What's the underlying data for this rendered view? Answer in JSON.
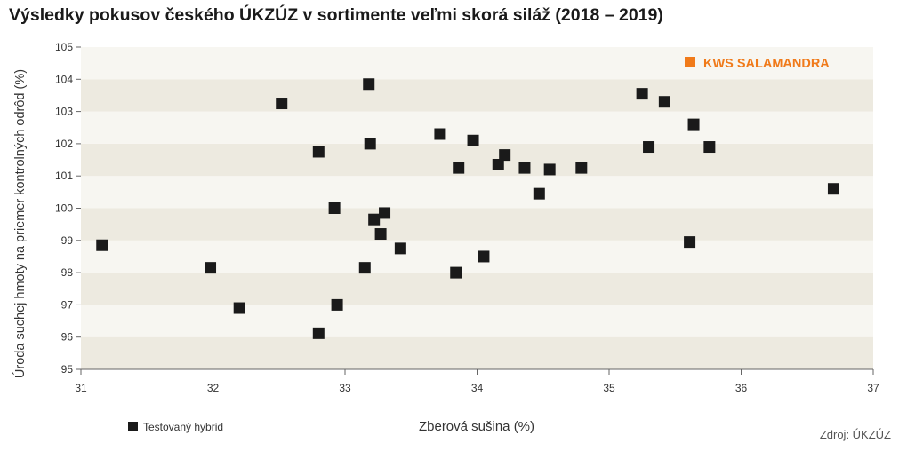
{
  "title": "Výsledky pokusov českého ÚKZÚZ v sortimente veľmi skorá siláž (2018 – 2019)",
  "source": "Zdroj: ÚKZÚZ",
  "colors": {
    "highlight": "#f07a1a",
    "marker": "#1a1a1a",
    "band_dark": "#edeae0",
    "band_light": "#f7f6f1"
  },
  "chart_data": {
    "type": "scatter",
    "xlabel": "Zberová sušina (%)",
    "ylabel": "Úroda suchej hmoty na priemer kontrolných odrôd (%)",
    "xlim": [
      31,
      37
    ],
    "ylim": [
      95,
      105
    ],
    "x_ticks": [
      "31",
      "32",
      "33",
      "34",
      "35",
      "36",
      "37"
    ],
    "y_ticks": [
      "95",
      "96",
      "97",
      "98",
      "99",
      "100",
      "101",
      "102",
      "103",
      "104",
      "105"
    ],
    "grid": "horizontal alternating bands",
    "legend_label": "Testovaný hybrid",
    "highlight_label": "KWS SALAMANDRA",
    "series": [
      {
        "name": "Testovaný hybrid",
        "points": [
          {
            "x": 31.16,
            "y": 98.85
          },
          {
            "x": 31.98,
            "y": 98.15
          },
          {
            "x": 32.2,
            "y": 96.9
          },
          {
            "x": 32.52,
            "y": 103.25
          },
          {
            "x": 32.8,
            "y": 101.75
          },
          {
            "x": 32.8,
            "y": 96.12
          },
          {
            "x": 32.92,
            "y": 100.0
          },
          {
            "x": 32.94,
            "y": 97.0
          },
          {
            "x": 33.15,
            "y": 98.15
          },
          {
            "x": 33.18,
            "y": 103.85
          },
          {
            "x": 33.19,
            "y": 102.0
          },
          {
            "x": 33.22,
            "y": 99.65
          },
          {
            "x": 33.27,
            "y": 99.2
          },
          {
            "x": 33.3,
            "y": 99.85
          },
          {
            "x": 33.42,
            "y": 98.75
          },
          {
            "x": 33.72,
            "y": 102.3
          },
          {
            "x": 33.84,
            "y": 98.0
          },
          {
            "x": 33.86,
            "y": 101.25
          },
          {
            "x": 33.97,
            "y": 102.1
          },
          {
            "x": 34.05,
            "y": 98.5
          },
          {
            "x": 34.16,
            "y": 101.35
          },
          {
            "x": 34.21,
            "y": 101.65
          },
          {
            "x": 34.36,
            "y": 101.25
          },
          {
            "x": 34.47,
            "y": 100.45
          },
          {
            "x": 34.55,
            "y": 101.2
          },
          {
            "x": 34.79,
            "y": 101.25
          },
          {
            "x": 35.25,
            "y": 103.55
          },
          {
            "x": 35.3,
            "y": 101.9
          },
          {
            "x": 35.42,
            "y": 103.3
          },
          {
            "x": 35.61,
            "y": 98.95
          },
          {
            "x": 35.64,
            "y": 102.6
          },
          {
            "x": 35.76,
            "y": 101.9
          },
          {
            "x": 36.7,
            "y": 100.6
          }
        ]
      }
    ]
  }
}
